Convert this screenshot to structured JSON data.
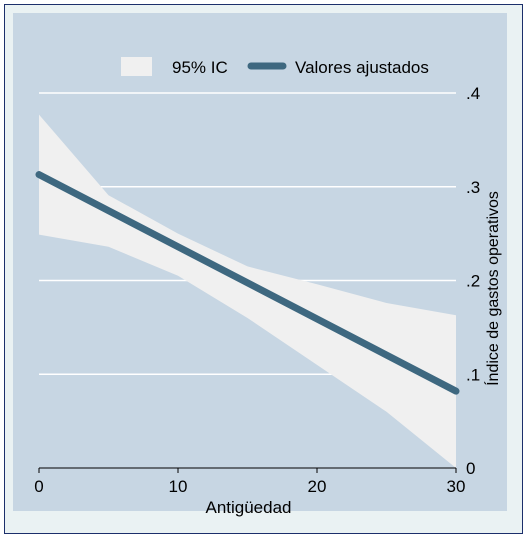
{
  "chart_data": {
    "type": "line",
    "xlabel": "Antigüedad",
    "ylabel": "Índice de gastos operativos",
    "xlim": [
      0,
      30
    ],
    "ylim": [
      0,
      0.4
    ],
    "x_ticks": [
      0,
      10,
      20,
      30
    ],
    "x_tick_labels": [
      "0",
      "10",
      "20",
      "30"
    ],
    "y_ticks": [
      0,
      0.1,
      0.2,
      0.3,
      0.4
    ],
    "y_tick_labels": [
      "0",
      ".1",
      ".2",
      ".3",
      ".4"
    ],
    "y_axis_side": "right",
    "grid": true,
    "legend_position": "top",
    "legend": [
      {
        "label": "95% IC",
        "kind": "band"
      },
      {
        "label": "Valores ajustados",
        "kind": "line"
      }
    ],
    "series": [
      {
        "name": "Valores ajustados",
        "x": [
          0,
          30
        ],
        "y": [
          0.313,
          0.082
        ]
      }
    ],
    "confidence_band": {
      "name": "95% IC",
      "x": [
        0,
        5,
        10,
        15,
        20,
        25,
        30
      ],
      "lower": [
        0.249,
        0.236,
        0.205,
        0.16,
        0.11,
        0.06,
        0.0
      ],
      "upper": [
        0.377,
        0.291,
        0.25,
        0.215,
        0.196,
        0.176,
        0.163
      ]
    },
    "colors": {
      "outer_background": "#eaf2f3",
      "plot_background": "#c7d6e3",
      "band": "#f0f0f0",
      "line": "#3e6880",
      "grid": "#ffffff",
      "frame": "#1c2f6b",
      "text": "#000000"
    }
  }
}
